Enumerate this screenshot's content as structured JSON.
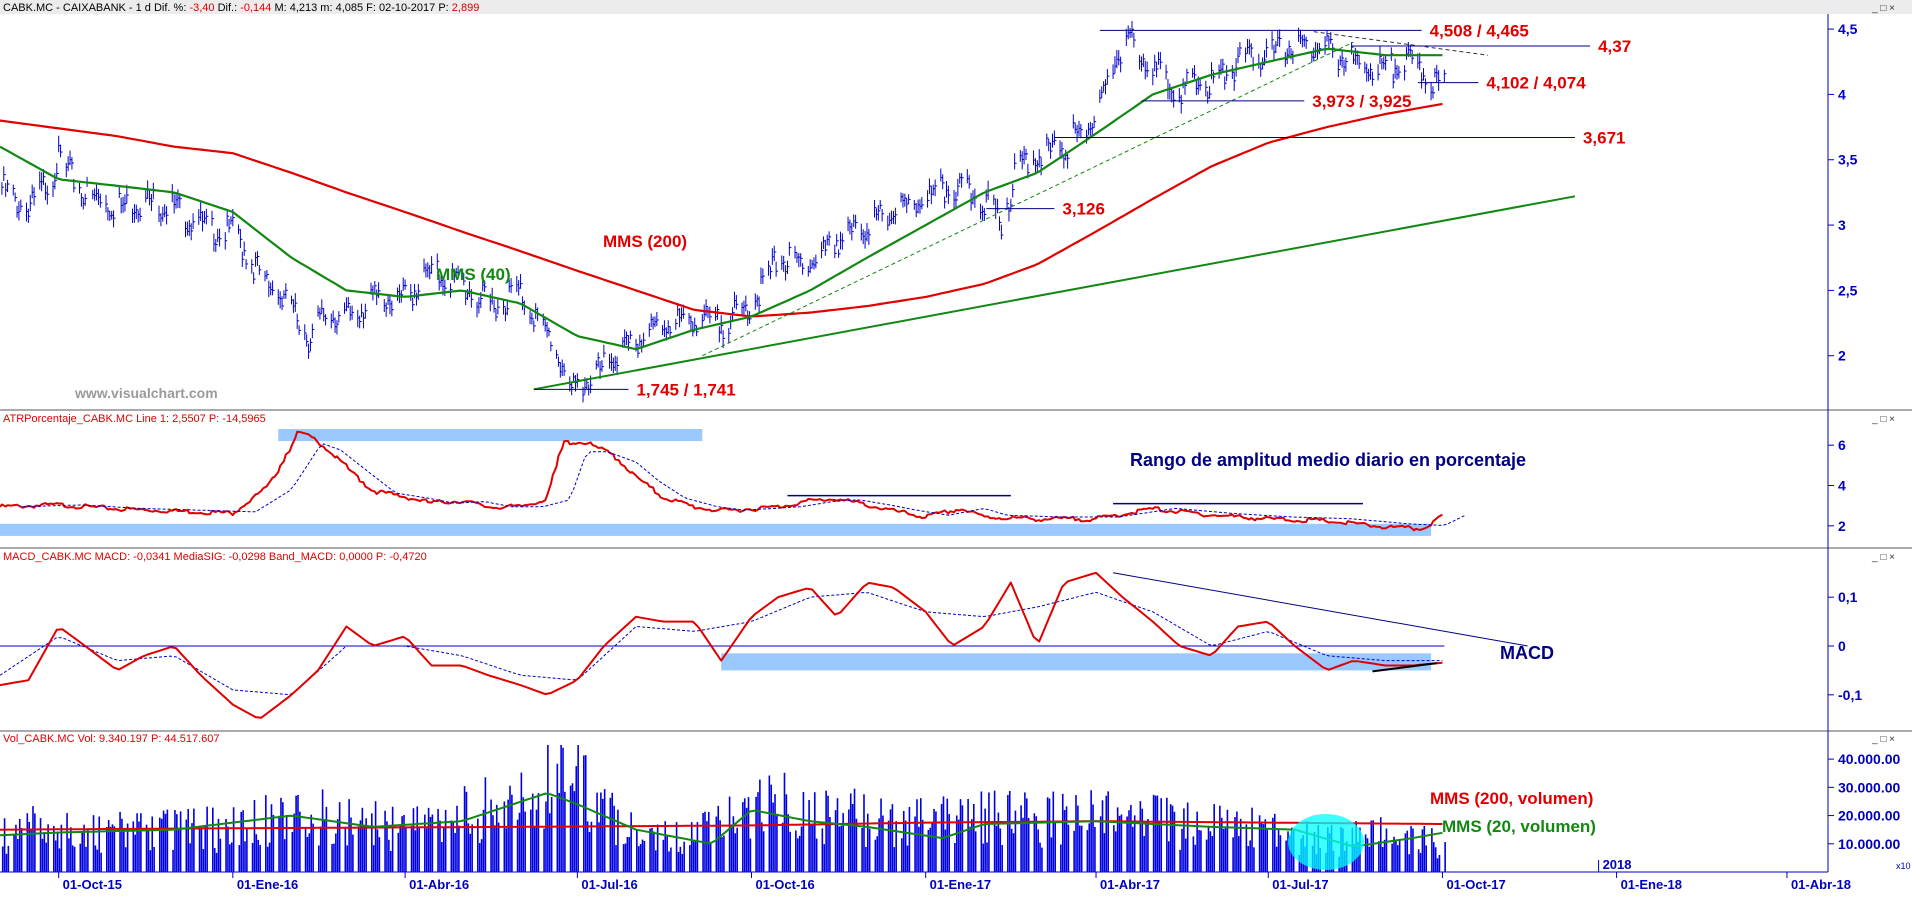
{
  "colors": {
    "price": "#0000c8",
    "mms200": "#e00000",
    "mms40": "#118811",
    "atr": "#e00000",
    "macd": "#e00000",
    "signal": "#0000c8",
    "volume": "#0000e0",
    "highlight": "#99c9ff",
    "cyan": "#00ffff",
    "navy": "#000080"
  },
  "headers": {
    "price": {
      "prefix": "CABK.MC - CAIXABANK - 1 d  Dif. %: ",
      "dif_pct": "-3,40",
      "mid1": "  Dif.: ",
      "dif": "-0,144",
      "rest": "  M: 4,213  m: 4,085  F: 02-10-2017  P: ",
      "p": "2,899"
    },
    "atr": "ATRPorcentaje_CABK.MC  Line 1: 2,5507  P: -14,5965",
    "macd": "MACD_CABK.MC  MACD: -0,0341  MediaSIG: -0,0298  Band_MACD: 0,0000  P: -0,4720",
    "vol": "Vol_CABK.MC  Vol: 9.340.197  P: 44.517.607"
  },
  "watermark": "www.visualchart.com",
  "window_controls": "_ □ ×",
  "annotations": {
    "mms200": "MMS (200)",
    "mms40": "MMS (40)",
    "atr_title": "Rango de amplitud medio diario en porcentaje",
    "macd_title": "MACD",
    "vol_mms200": "MMS (200, volumen)",
    "vol_mms20": "MMS (20, volumen)",
    "vol_scale": "x10"
  },
  "levels": [
    {
      "id": "l4508",
      "label": "4,508 / 4,465",
      "value": 4.49,
      "from": "2017-04-03",
      "to": "2017-09-20"
    },
    {
      "id": "l437",
      "label": "4,37",
      "value": 4.37,
      "from": "2017-08-14",
      "to": "2017-12-18"
    },
    {
      "id": "l4102",
      "label": "4,102 / 4,074",
      "value": 4.09,
      "from": "2017-09-18",
      "to": "2017-10-20"
    },
    {
      "id": "l3973",
      "label": "3,973 / 3,925",
      "value": 3.95,
      "from": "2017-04-25",
      "to": "2017-07-20"
    },
    {
      "id": "l3671",
      "label": "3,671",
      "value": 3.67,
      "from": "2017-03-10",
      "to": "2017-12-10"
    },
    {
      "id": "l3126",
      "label": "3,126",
      "value": 3.126,
      "from": "2017-02-02",
      "to": "2017-03-10"
    },
    {
      "id": "l1745",
      "label": "1,745 / 1,741",
      "value": 1.743,
      "from": "2016-06-08",
      "to": "2016-07-28"
    }
  ],
  "chart_data": [
    {
      "id": "price",
      "type": "bar",
      "title": "CABK.MC - CAIXABANK - 1 d",
      "x_axis": {
        "type": "date",
        "ticks": [
          "01-Oct-15",
          "01-Ene-16",
          "01-Abr-16",
          "01-Jul-16",
          "01-Oct-16",
          "01-Ene-17",
          "01-Abr-17",
          "01-Jul-17",
          "01-Oct-17",
          "2018",
          "01-Ene-18",
          "01-Abr-18"
        ]
      },
      "ylim": [
        1.6,
        4.6
      ],
      "yticks": [
        2,
        2.5,
        3,
        3.5,
        4,
        4.5
      ],
      "ytick_labels": [
        "2",
        "2,5",
        "3",
        "3,5",
        "4",
        "4,5"
      ],
      "series": [
        {
          "kind": "close",
          "x": [
            "2015-09-01",
            "2015-09-15",
            "2015-10-01",
            "2015-10-15",
            "2015-11-01",
            "2015-11-15",
            "2015-12-01",
            "2015-12-15",
            "2016-01-01",
            "2016-01-15",
            "2016-02-01",
            "2016-02-10",
            "2016-02-20",
            "2016-03-01",
            "2016-03-15",
            "2016-04-01",
            "2016-04-15",
            "2016-05-01",
            "2016-05-15",
            "2016-06-01",
            "2016-06-10",
            "2016-06-20",
            "2016-06-28",
            "2016-07-10",
            "2016-07-20",
            "2016-08-01",
            "2016-08-15",
            "2016-09-01",
            "2016-09-15",
            "2016-10-01",
            "2016-10-15",
            "2016-11-01",
            "2016-11-15",
            "2016-12-01",
            "2016-12-15",
            "2017-01-01",
            "2017-01-15",
            "2017-02-01",
            "2017-02-10",
            "2017-02-20",
            "2017-03-01",
            "2017-03-15",
            "2017-04-01",
            "2017-04-10",
            "2017-04-20",
            "2017-05-01",
            "2017-05-15",
            "2017-06-01",
            "2017-06-15",
            "2017-07-01",
            "2017-07-15",
            "2017-08-01",
            "2017-08-15",
            "2017-09-01",
            "2017-09-15",
            "2017-10-02"
          ],
          "values": [
            3.35,
            3.15,
            3.55,
            3.3,
            3.2,
            3.25,
            3.2,
            3.05,
            3.0,
            2.7,
            2.4,
            2.2,
            2.4,
            2.35,
            2.5,
            2.5,
            2.7,
            2.6,
            2.45,
            2.55,
            2.35,
            2.1,
            1.78,
            1.9,
            2.05,
            2.15,
            2.3,
            2.35,
            2.3,
            2.45,
            2.8,
            2.75,
            2.95,
            3.05,
            3.15,
            3.25,
            3.35,
            3.25,
            3.1,
            3.55,
            3.6,
            3.65,
            3.9,
            4.3,
            4.45,
            4.25,
            4.1,
            4.15,
            4.3,
            4.35,
            4.45,
            4.4,
            4.3,
            4.25,
            4.3,
            4.1
          ]
        },
        {
          "name": "MMS (200)",
          "x": [
            "2015-08-31",
            "2015-10-01",
            "2015-11-01",
            "2015-12-01",
            "2016-01-01",
            "2016-02-01",
            "2016-03-01",
            "2016-04-01",
            "2016-05-01",
            "2016-06-01",
            "2016-07-01",
            "2016-08-01",
            "2016-09-01",
            "2016-10-01",
            "2016-11-01",
            "2016-12-01",
            "2017-01-01",
            "2017-02-01",
            "2017-03-01",
            "2017-04-01",
            "2017-05-01",
            "2017-06-01",
            "2017-07-01",
            "2017-08-01",
            "2017-09-01",
            "2017-10-02"
          ],
          "values": [
            3.8,
            3.74,
            3.68,
            3.6,
            3.55,
            3.4,
            3.25,
            3.1,
            2.95,
            2.8,
            2.65,
            2.5,
            2.35,
            2.3,
            2.33,
            2.38,
            2.45,
            2.55,
            2.7,
            2.95,
            3.2,
            3.45,
            3.63,
            3.75,
            3.85,
            3.93
          ]
        },
        {
          "name": "MMS (40)",
          "x": [
            "2015-08-31",
            "2015-10-01",
            "2015-11-01",
            "2015-12-01",
            "2016-01-01",
            "2016-02-01",
            "2016-03-01",
            "2016-04-01",
            "2016-05-01",
            "2016-06-01",
            "2016-07-01",
            "2016-08-01",
            "2016-09-01",
            "2016-10-01",
            "2016-11-01",
            "2016-12-01",
            "2017-01-01",
            "2017-02-01",
            "2017-03-01",
            "2017-04-01",
            "2017-05-01",
            "2017-06-01",
            "2017-07-01",
            "2017-08-01",
            "2017-09-01",
            "2017-10-02"
          ],
          "values": [
            3.6,
            3.35,
            3.3,
            3.25,
            3.1,
            2.75,
            2.5,
            2.45,
            2.5,
            2.4,
            2.15,
            2.05,
            2.2,
            2.3,
            2.5,
            2.75,
            3.0,
            3.25,
            3.4,
            3.7,
            4.0,
            4.15,
            4.25,
            4.35,
            4.3,
            4.3
          ]
        }
      ],
      "trendlines": [
        {
          "id": "tl-green",
          "color": "#118811",
          "from": {
            "x": "2016-06-08",
            "y": 1.743
          },
          "to": {
            "x": "2017-12-10",
            "y": 3.22
          }
        },
        {
          "id": "tl-dash-green",
          "color": "#118811",
          "dashed": true,
          "from": {
            "x": "2016-09-05",
            "y": 2.0
          },
          "to": {
            "x": "2017-08-15",
            "y": 4.4
          }
        },
        {
          "id": "tl-dash-black",
          "color": "#333333",
          "dashed": true,
          "from": {
            "x": "2017-07-25",
            "y": 4.48
          },
          "to": {
            "x": "2017-10-25",
            "y": 4.3
          }
        }
      ]
    },
    {
      "id": "atr",
      "type": "line",
      "title": "ATRPorcentaje_CABK.MC",
      "ylim": [
        1,
        7
      ],
      "yticks": [
        2,
        4,
        6
      ],
      "ytick_labels": [
        "2",
        "4",
        "6"
      ],
      "series": [
        {
          "name": "Line 1",
          "x": [
            "2015-08-31",
            "2015-10-01",
            "2015-11-01",
            "2015-12-01",
            "2016-01-01",
            "2016-01-20",
            "2016-02-05",
            "2016-02-15",
            "2016-03-01",
            "2016-03-15",
            "2016-04-01",
            "2016-04-15",
            "2016-05-01",
            "2016-05-15",
            "2016-06-01",
            "2016-06-15",
            "2016-06-24",
            "2016-07-05",
            "2016-07-20",
            "2016-08-01",
            "2016-08-15",
            "2016-09-01",
            "2016-09-15",
            "2016-10-01",
            "2016-10-15",
            "2016-11-01",
            "2016-11-15",
            "2016-12-01",
            "2016-12-15",
            "2017-01-01",
            "2017-01-20",
            "2017-02-01",
            "2017-03-01",
            "2017-04-01",
            "2017-05-01",
            "2017-06-01",
            "2017-07-01",
            "2017-08-01",
            "2017-09-01",
            "2017-09-20",
            "2017-10-02"
          ],
          "values": [
            3.0,
            3.1,
            2.9,
            2.8,
            2.7,
            4.0,
            6.7,
            6.3,
            5.0,
            3.8,
            3.5,
            3.2,
            3.3,
            3.0,
            3.0,
            3.4,
            6.2,
            6.2,
            5.6,
            4.5,
            3.5,
            3.0,
            2.8,
            2.9,
            3.0,
            3.3,
            3.4,
            3.1,
            2.8,
            2.5,
            2.9,
            2.5,
            2.4,
            2.4,
            2.9,
            2.6,
            2.4,
            2.3,
            2.0,
            1.9,
            2.55
          ]
        }
      ],
      "highlights": [
        {
          "id": "hl-atr-top",
          "from": "2016-01-25",
          "to": "2016-09-05",
          "ylim": [
            6.2,
            6.8
          ]
        },
        {
          "id": "hl-atr-bottom",
          "from": "2015-08-31",
          "to": "2017-09-25",
          "ylim": [
            1.5,
            2.1
          ]
        }
      ],
      "hlines": [
        {
          "id": "atr-hl-1",
          "from": "2016-10-20",
          "to": "2017-02-15",
          "value": 3.5
        },
        {
          "id": "atr-hl-2",
          "from": "2017-04-10",
          "to": "2017-08-20",
          "value": 3.1
        }
      ]
    },
    {
      "id": "macd",
      "type": "line",
      "title": "MACD_CABK.MC",
      "ylim": [
        -0.17,
        0.17
      ],
      "yticks": [
        0.1,
        0,
        -0.1
      ],
      "ytick_labels": [
        "0,1",
        "0",
        "-0,1"
      ],
      "series": [
        {
          "name": "MACD",
          "x": [
            "2015-08-31",
            "2015-09-15",
            "2015-10-01",
            "2015-10-15",
            "2015-11-01",
            "2015-11-15",
            "2015-12-01",
            "2015-12-15",
            "2016-01-01",
            "2016-01-15",
            "2016-02-01",
            "2016-02-15",
            "2016-03-01",
            "2016-03-15",
            "2016-04-01",
            "2016-04-15",
            "2016-05-01",
            "2016-05-15",
            "2016-06-01",
            "2016-06-15",
            "2016-07-01",
            "2016-07-15",
            "2016-08-01",
            "2016-08-15",
            "2016-09-01",
            "2016-09-15",
            "2016-10-01",
            "2016-10-15",
            "2016-11-01",
            "2016-11-15",
            "2016-12-01",
            "2016-12-15",
            "2017-01-01",
            "2017-01-15",
            "2017-02-01",
            "2017-02-15",
            "2017-03-01",
            "2017-03-15",
            "2017-04-01",
            "2017-04-15",
            "2017-05-01",
            "2017-05-15",
            "2017-06-01",
            "2017-06-15",
            "2017-07-01",
            "2017-07-15",
            "2017-08-01",
            "2017-08-15",
            "2017-09-01",
            "2017-09-15",
            "2017-10-02"
          ],
          "values": [
            -0.08,
            -0.07,
            0.04,
            0.0,
            -0.05,
            -0.02,
            0.0,
            -0.06,
            -0.12,
            -0.15,
            -0.1,
            -0.05,
            0.04,
            0.0,
            0.02,
            -0.04,
            -0.04,
            -0.06,
            -0.08,
            -0.1,
            -0.07,
            0.0,
            0.06,
            0.05,
            0.05,
            -0.03,
            0.06,
            0.1,
            0.12,
            0.06,
            0.13,
            0.12,
            0.07,
            0.0,
            0.04,
            0.13,
            0.0,
            0.13,
            0.15,
            0.1,
            0.05,
            0.0,
            -0.02,
            0.04,
            0.05,
            0.0,
            -0.05,
            -0.03,
            -0.04,
            -0.04,
            -0.034
          ]
        },
        {
          "name": "MediaSIG",
          "x": [
            "2015-08-31",
            "2015-10-01",
            "2015-11-01",
            "2015-12-01",
            "2016-01-01",
            "2016-02-01",
            "2016-03-01",
            "2016-04-01",
            "2016-05-01",
            "2016-06-01",
            "2016-07-01",
            "2016-08-01",
            "2016-09-01",
            "2016-10-01",
            "2016-11-01",
            "2016-12-01",
            "2017-01-01",
            "2017-02-01",
            "2017-03-01",
            "2017-04-01",
            "2017-05-01",
            "2017-06-01",
            "2017-07-01",
            "2017-08-01",
            "2017-09-01",
            "2017-10-02"
          ],
          "values": [
            -0.06,
            0.02,
            -0.03,
            -0.02,
            -0.09,
            -0.1,
            0.0,
            0.0,
            -0.02,
            -0.06,
            -0.07,
            0.04,
            0.03,
            0.05,
            0.1,
            0.11,
            0.07,
            0.06,
            0.08,
            0.11,
            0.07,
            0.0,
            0.03,
            -0.02,
            -0.03,
            -0.03
          ]
        }
      ],
      "highlights": [
        {
          "id": "hl-macd",
          "from": "2016-09-15",
          "to": "2017-09-25",
          "ylim": [
            -0.05,
            -0.015
          ]
        }
      ],
      "hlines": [
        {
          "id": "macd-zero",
          "from": "2015-08-31",
          "to": "2017-10-02",
          "value": 0
        }
      ],
      "trendlines": [
        {
          "id": "macd-tl-blue",
          "color": "#000080",
          "from": {
            "x": "2017-04-10",
            "y": 0.15
          },
          "to": {
            "x": "2017-11-15",
            "y": 0.0
          }
        },
        {
          "id": "macd-tl-black",
          "color": "#000000",
          "from": {
            "x": "2017-08-25",
            "y": -0.052
          },
          "to": {
            "x": "2017-09-28",
            "y": -0.035
          }
        }
      ]
    },
    {
      "id": "volume",
      "type": "bar",
      "title": "Vol_CABK.MC",
      "ylim": [
        0,
        45000000
      ],
      "yticks": [
        10000000,
        20000000,
        30000000,
        40000000
      ],
      "ytick_labels": [
        "10.000.00",
        "20.000.00",
        "30.000.00",
        "40.000.00"
      ],
      "series": [
        {
          "name": "Vol",
          "x": [
            "2015-09-01",
            "2015-10-01",
            "2015-11-01",
            "2015-12-01",
            "2016-01-01",
            "2016-02-01",
            "2016-03-01",
            "2016-04-01",
            "2016-05-01",
            "2016-06-01",
            "2016-06-24",
            "2016-07-10",
            "2016-08-01",
            "2016-09-01",
            "2016-10-01",
            "2016-11-01",
            "2016-12-01",
            "2017-01-01",
            "2017-02-01",
            "2017-03-01",
            "2017-04-01",
            "2017-05-01",
            "2017-06-01",
            "2017-07-01",
            "2017-08-01",
            "2017-09-01",
            "2017-10-02"
          ],
          "values": [
            14000000,
            16000000,
            14000000,
            15000000,
            15000000,
            22000000,
            17000000,
            16000000,
            20000000,
            25000000,
            38000000,
            24000000,
            14000000,
            12000000,
            25000000,
            22000000,
            19000000,
            17000000,
            19000000,
            18000000,
            20000000,
            18000000,
            16000000,
            15000000,
            11000000,
            13000000,
            9340197
          ]
        },
        {
          "name": "MMS (200, volumen)",
          "x": [
            "2015-08-31",
            "2016-01-01",
            "2016-06-01",
            "2016-10-01",
            "2017-01-01",
            "2017-04-01",
            "2017-07-01",
            "2017-10-02"
          ],
          "values": [
            15000000,
            15500000,
            16000000,
            16500000,
            17500000,
            18000000,
            17500000,
            17000000
          ]
        },
        {
          "name": "MMS (20, volumen)",
          "x": [
            "2015-08-31",
            "2015-10-01",
            "2015-12-01",
            "2016-02-01",
            "2016-03-15",
            "2016-05-01",
            "2016-06-15",
            "2016-07-01",
            "2016-08-01",
            "2016-09-10",
            "2016-10-01",
            "2016-11-01",
            "2016-12-01",
            "2017-01-10",
            "2017-02-01",
            "2017-04-01",
            "2017-06-01",
            "2017-07-15",
            "2017-08-15",
            "2017-09-15",
            "2017-10-02"
          ],
          "values": [
            13000000,
            14000000,
            15000000,
            20000000,
            16000000,
            18000000,
            28000000,
            24000000,
            15000000,
            10000000,
            22000000,
            18000000,
            16000000,
            12000000,
            17000000,
            18000000,
            16000000,
            15000000,
            9000000,
            12000000,
            14000000
          ]
        }
      ]
    }
  ]
}
